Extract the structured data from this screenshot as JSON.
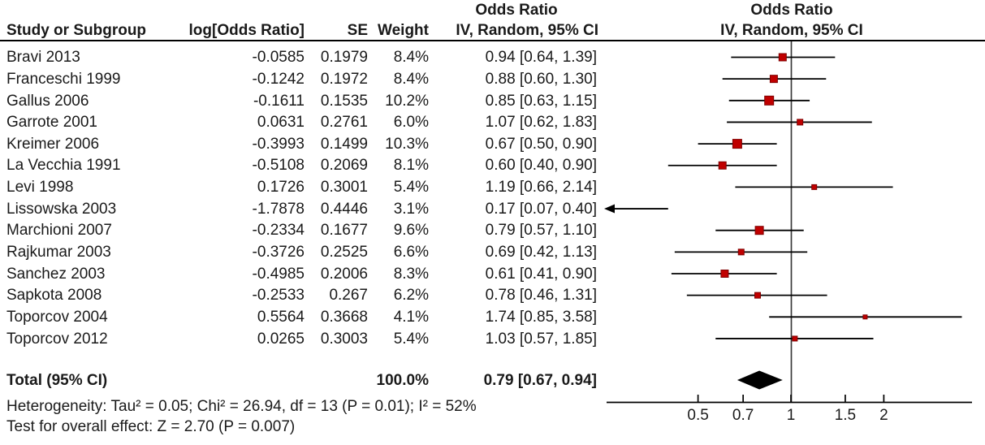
{
  "table": {
    "headers": {
      "study": "Study or Subgroup",
      "log_or": "log[Odds Ratio]",
      "se": "SE",
      "weight": "Weight",
      "effect_group": "Odds Ratio",
      "effect_ci": "IV, Random, 95% CI",
      "plot_group": "Odds Ratio",
      "plot_ci": "IV, Random, 95% CI"
    }
  },
  "chart_data": {
    "type": "forest",
    "effect_measure": "Odds Ratio",
    "model": "IV, Random, 95% CI",
    "x_scale": "log",
    "axis_ticks": [
      "0.5",
      "0.7",
      "1",
      "1.5",
      "2"
    ],
    "axis_tick_values": [
      0.5,
      0.7,
      1,
      1.5,
      2
    ],
    "studies": [
      {
        "name": "Bravi 2013",
        "log_or": "-0.0585",
        "se": "0.1979",
        "weight": "8.4%",
        "weight_pct": 8.4,
        "ci_text": "0.94 [0.64, 1.39]",
        "or": 0.94,
        "low": 0.64,
        "high": 1.39
      },
      {
        "name": "Franceschi 1999",
        "log_or": "-0.1242",
        "se": "0.1972",
        "weight": "8.4%",
        "weight_pct": 8.4,
        "ci_text": "0.88 [0.60, 1.30]",
        "or": 0.88,
        "low": 0.6,
        "high": 1.3
      },
      {
        "name": "Gallus 2006",
        "log_or": "-0.1611",
        "se": "0.1535",
        "weight": "10.2%",
        "weight_pct": 10.2,
        "ci_text": "0.85 [0.63, 1.15]",
        "or": 0.85,
        "low": 0.63,
        "high": 1.15
      },
      {
        "name": "Garrote 2001",
        "log_or": "0.0631",
        "se": "0.2761",
        "weight": "6.0%",
        "weight_pct": 6.0,
        "ci_text": "1.07 [0.62, 1.83]",
        "or": 1.07,
        "low": 0.62,
        "high": 1.83
      },
      {
        "name": "Kreimer 2006",
        "log_or": "-0.3993",
        "se": "0.1499",
        "weight": "10.3%",
        "weight_pct": 10.3,
        "ci_text": "0.67 [0.50, 0.90]",
        "or": 0.67,
        "low": 0.5,
        "high": 0.9
      },
      {
        "name": "La Vecchia 1991",
        "log_or": "-0.5108",
        "se": "0.2069",
        "weight": "8.1%",
        "weight_pct": 8.1,
        "ci_text": "0.60 [0.40, 0.90]",
        "or": 0.6,
        "low": 0.4,
        "high": 0.9
      },
      {
        "name": "Levi 1998",
        "log_or": "0.1726",
        "se": "0.3001",
        "weight": "5.4%",
        "weight_pct": 5.4,
        "ci_text": "1.19 [0.66, 2.14]",
        "or": 1.19,
        "low": 0.66,
        "high": 2.14
      },
      {
        "name": "Lissowska 2003",
        "log_or": "-1.7878",
        "se": "0.4446",
        "weight": "3.1%",
        "weight_pct": 3.1,
        "ci_text": "0.17 [0.07, 0.40]",
        "or": 0.17,
        "low": 0.07,
        "high": 0.4
      },
      {
        "name": "Marchioni 2007",
        "log_or": "-0.2334",
        "se": "0.1677",
        "weight": "9.6%",
        "weight_pct": 9.6,
        "ci_text": "0.79 [0.57, 1.10]",
        "or": 0.79,
        "low": 0.57,
        "high": 1.1
      },
      {
        "name": "Rajkumar 2003",
        "log_or": "-0.3726",
        "se": "0.2525",
        "weight": "6.6%",
        "weight_pct": 6.6,
        "ci_text": "0.69 [0.42, 1.13]",
        "or": 0.69,
        "low": 0.42,
        "high": 1.13
      },
      {
        "name": "Sanchez 2003",
        "log_or": "-0.4985",
        "se": "0.2006",
        "weight": "8.3%",
        "weight_pct": 8.3,
        "ci_text": "0.61 [0.41, 0.90]",
        "or": 0.61,
        "low": 0.41,
        "high": 0.9
      },
      {
        "name": "Sapkota 2008",
        "log_or": "-0.2533",
        "se": "0.267",
        "weight": "6.2%",
        "weight_pct": 6.2,
        "ci_text": "0.78 [0.46, 1.31]",
        "or": 0.78,
        "low": 0.46,
        "high": 1.31
      },
      {
        "name": "Toporcov 2004",
        "log_or": "0.5564",
        "se": "0.3668",
        "weight": "4.1%",
        "weight_pct": 4.1,
        "ci_text": "1.74 [0.85, 3.58]",
        "or": 1.74,
        "low": 0.85,
        "high": 3.58
      },
      {
        "name": "Toporcov 2012",
        "log_or": "0.0265",
        "se": "0.3003",
        "weight": "5.4%",
        "weight_pct": 5.4,
        "ci_text": "1.03 [0.57, 1.85]",
        "or": 1.03,
        "low": 0.57,
        "high": 1.85
      }
    ],
    "total": {
      "label": "Total (95% CI)",
      "weight": "100.0%",
      "ci_text": "0.79 [0.67, 0.94]",
      "or": 0.79,
      "low": 0.67,
      "high": 0.94
    },
    "heterogeneity": "Heterogeneity: Tau² = 0.05; Chi² = 26.94, df = 13 (P = 0.01); I² = 52%",
    "overall_effect": "Test for overall effect: Z = 2.70 (P = 0.007)"
  },
  "colors": {
    "marker_fill": "#c00000",
    "marker_border": "#7f0000",
    "line": "#000000",
    "null_line": "#3a3a3a",
    "diamond": "#000000"
  }
}
